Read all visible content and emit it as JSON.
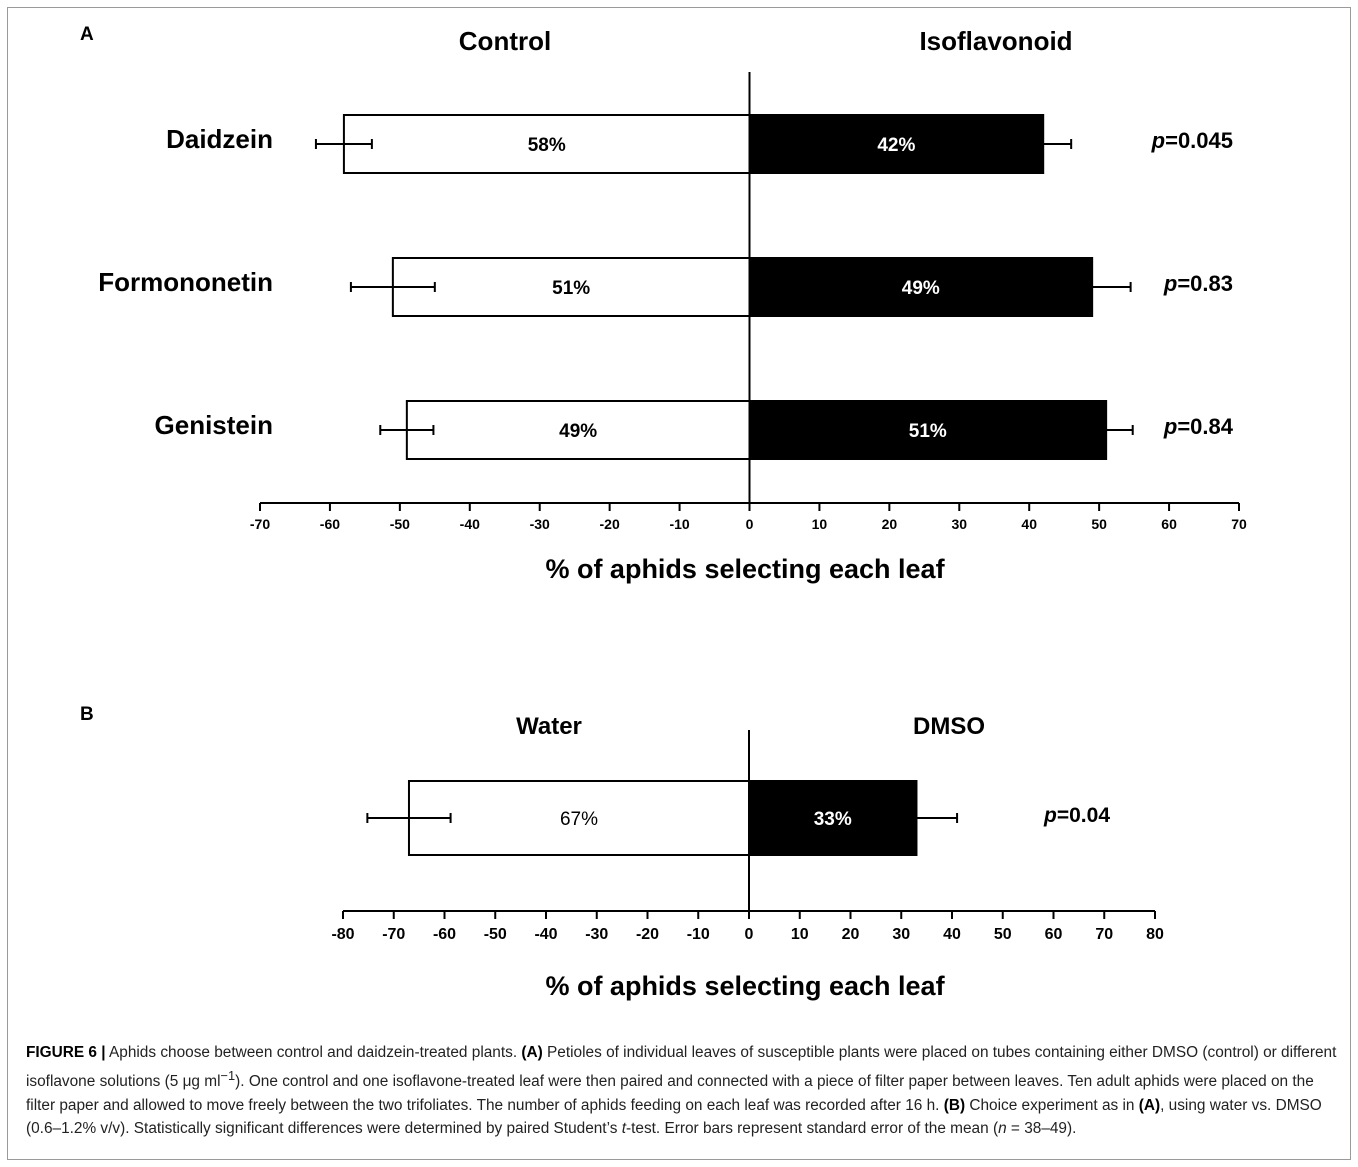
{
  "chart_data": [
    {
      "type": "bar",
      "orientation": "horizontal-diverging",
      "panel_label": "A",
      "left_heading": "Control",
      "right_heading": "Isoflavonoid",
      "xlabel": "% of aphids selecting each leaf",
      "xlim": [
        -70,
        70
      ],
      "xticks": [
        -70,
        -60,
        -50,
        -40,
        -30,
        -20,
        -10,
        0,
        10,
        20,
        30,
        40,
        50,
        60,
        70
      ],
      "categories": [
        "Daidzein",
        "Formononetin",
        "Genistein"
      ],
      "series": [
        {
          "name": "Control",
          "values": [
            -58,
            -51,
            -49
          ],
          "errors": [
            4,
            6,
            3.8
          ],
          "labels": [
            "58%",
            "51%",
            "49%"
          ],
          "color": "#ffffff"
        },
        {
          "name": "Isoflavonoid",
          "values": [
            42,
            49,
            51
          ],
          "errors": [
            4,
            5.5,
            3.8
          ],
          "labels": [
            "42%",
            "49%",
            "51%"
          ],
          "color": "#000000"
        }
      ],
      "pvalues": [
        "0.045",
        "0.83",
        "0.84"
      ],
      "grid": false
    },
    {
      "type": "bar",
      "orientation": "horizontal-diverging",
      "panel_label": "B",
      "left_heading": "Water",
      "right_heading": "DMSO",
      "xlabel": "% of aphids selecting each leaf",
      "xlim": [
        -80,
        80
      ],
      "xticks": [
        -80,
        -70,
        -60,
        -50,
        -40,
        -30,
        -20,
        -10,
        0,
        10,
        20,
        30,
        40,
        50,
        60,
        70,
        80
      ],
      "categories": [
        ""
      ],
      "series": [
        {
          "name": "Water",
          "values": [
            -67
          ],
          "errors": [
            8.2
          ],
          "labels": [
            "67%"
          ],
          "color": "#ffffff"
        },
        {
          "name": "DMSO",
          "values": [
            33
          ],
          "errors": [
            8
          ],
          "labels": [
            "33%"
          ],
          "color": "#000000"
        }
      ],
      "pvalues": [
        "0.04"
      ],
      "grid": false
    }
  ],
  "p_prefix": "p",
  "caption": {
    "figure_label": "FIGURE 6 |",
    "lead": " Aphids choose between control and daidzein-treated plants. ",
    "a_label": "(A)",
    "a_text1": " Petioles of individual leaves of susceptible plants were placed on tubes containing either DMSO (control) or different isoflavone solutions (5 ",
    "a_unit": "μg ml",
    "a_exp": "−1",
    "a_text2": "). One control and one isoflavone-treated leaf were then paired and connected with a piece of filter paper between leaves. Ten adult aphids were placed on the filter paper and allowed to move freely between the two trifoliates. The number of aphids feeding on each leaf was recorded after 16 h. ",
    "b_label": "(B)",
    "b_text1": " Choice experiment as in ",
    "b_ref": "(A)",
    "b_text2": ", using water vs. DMSO (0.6–1.2% v/v). Statistically significant differences were determined by paired Student’s ",
    "t_italic": "t",
    "b_text3": "-test. Error bars represent standard error of the mean (",
    "n_italic": "n",
    "b_text4": " = 38–49)."
  }
}
